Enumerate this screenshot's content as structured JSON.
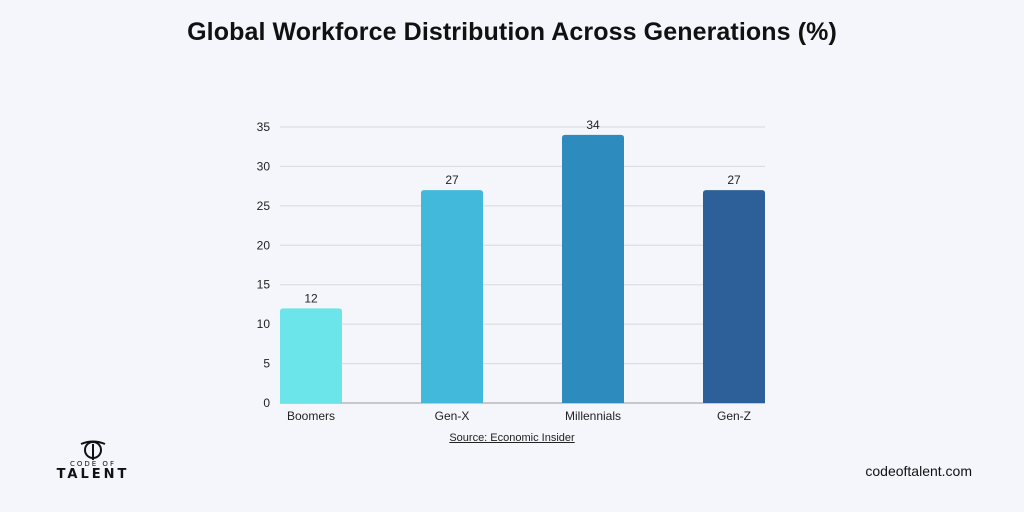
{
  "page": {
    "title": "Global Workforce Distribution Across Generations (%)",
    "source": "Source: Economic Insider",
    "logo_top": "CODE OF",
    "logo_bottom": "TALENT",
    "site": "codeoftalent.com"
  },
  "chart_data": {
    "type": "bar",
    "title": "Global Workforce Distribution Across Generations (%)",
    "categories": [
      "Boomers",
      "Gen-X",
      "Millennials",
      "Gen-Z"
    ],
    "values": [
      12,
      27,
      34,
      27
    ],
    "colors": [
      "#6be5e9",
      "#42b8da",
      "#2d8cbd",
      "#2d5f98"
    ],
    "ylim": [
      0,
      35
    ],
    "yticks": [
      0,
      5,
      10,
      15,
      20,
      25,
      30,
      35
    ],
    "grid": true,
    "legend": "none",
    "xlabel": "",
    "ylabel": ""
  }
}
